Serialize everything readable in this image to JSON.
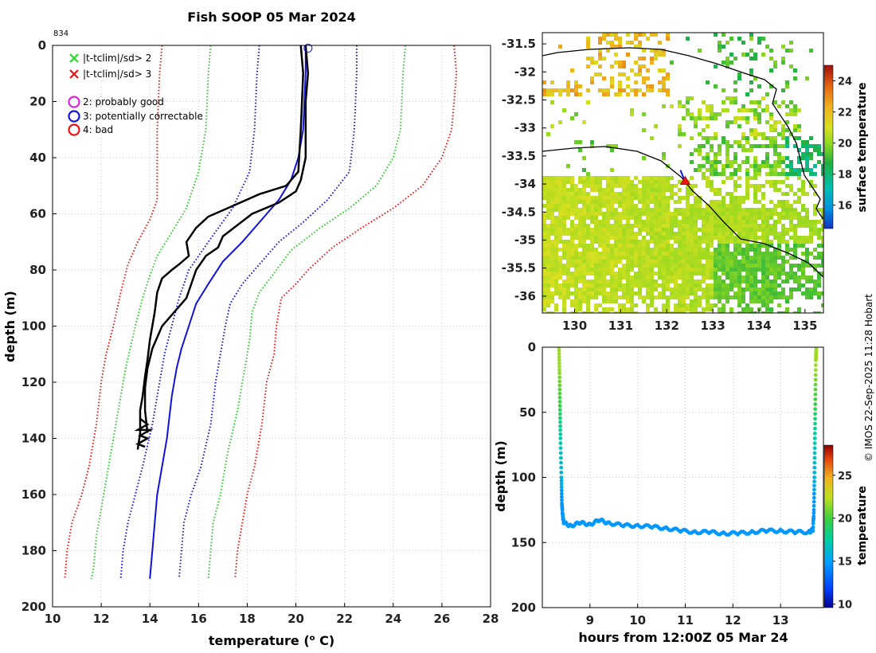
{
  "title": "Fish SOOP 05 Mar 2024",
  "profile_id": "834",
  "credit": "©  IMOS 22-Sep-2025 11:28 Hobart",
  "chart_data": [
    {
      "type": "line",
      "name": "temperature-profile",
      "xlabel": "temperature (°C)",
      "xlabel_main": "temperature (",
      "xlabel_sup": "o",
      "xlabel_tail": " C)",
      "ylabel": "depth (m)",
      "xlim": [
        10,
        28
      ],
      "ylim": [
        200,
        0
      ],
      "xticks": [
        10,
        12,
        14,
        16,
        18,
        20,
        22,
        24,
        26,
        28
      ],
      "yticks": [
        0,
        20,
        40,
        60,
        80,
        100,
        120,
        140,
        160,
        180,
        200
      ],
      "grid": true,
      "legend": [
        {
          "marker": "x",
          "color": "#22dd22",
          "label": "|t-tclim|/sd> 2"
        },
        {
          "marker": "x",
          "color": "#ee1111",
          "label": "|t-tclim|/sd> 3"
        },
        {
          "marker": "o",
          "color": "#dd22dd",
          "label": "2: probably good"
        },
        {
          "marker": "o",
          "color": "#1111dd",
          "label": "3: potentially correctable"
        },
        {
          "marker": "o",
          "color": "#ee1111",
          "label": "4: bad"
        }
      ],
      "series": [
        {
          "name": "clim minus 3sd",
          "color": "#ee1111",
          "style": "dotted",
          "points": [
            [
              14.5,
              0
            ],
            [
              14.4,
              10
            ],
            [
              14.3,
              30
            ],
            [
              14.3,
              55
            ],
            [
              14.0,
              62
            ],
            [
              13.5,
              70
            ],
            [
              13.1,
              78
            ],
            [
              12.8,
              88
            ],
            [
              12.5,
              100
            ],
            [
              12.2,
              110
            ],
            [
              12.0,
              120
            ],
            [
              11.8,
              135
            ],
            [
              11.5,
              150
            ],
            [
              11.2,
              160
            ],
            [
              10.8,
              170
            ],
            [
              10.6,
              180
            ],
            [
              10.5,
              190
            ]
          ]
        },
        {
          "name": "clim minus 2sd",
          "color": "#22cc22",
          "style": "dotted",
          "points": [
            [
              16.5,
              0
            ],
            [
              16.4,
              10
            ],
            [
              16.3,
              30
            ],
            [
              16.0,
              45
            ],
            [
              15.5,
              58
            ],
            [
              14.8,
              68
            ],
            [
              14.3,
              75
            ],
            [
              14.0,
              82
            ],
            [
              13.7,
              90
            ],
            [
              13.4,
              100
            ],
            [
              13.0,
              115
            ],
            [
              12.7,
              130
            ],
            [
              12.4,
              145
            ],
            [
              12.1,
              160
            ],
            [
              11.8,
              175
            ],
            [
              11.7,
              185
            ],
            [
              11.6,
              190
            ]
          ]
        },
        {
          "name": "clim minus 1sd",
          "color": "#1111dd",
          "style": "dotted",
          "points": [
            [
              18.5,
              0
            ],
            [
              18.4,
              10
            ],
            [
              18.3,
              30
            ],
            [
              18.1,
              45
            ],
            [
              17.4,
              58
            ],
            [
              16.4,
              70
            ],
            [
              15.6,
              80
            ],
            [
              15.2,
              90
            ],
            [
              14.9,
              100
            ],
            [
              14.6,
              110
            ],
            [
              14.4,
              120
            ],
            [
              14.1,
              135
            ],
            [
              13.7,
              150
            ],
            [
              13.4,
              160
            ],
            [
              13.1,
              170
            ],
            [
              12.9,
              180
            ],
            [
              12.8,
              190
            ]
          ]
        },
        {
          "name": "climatology mean",
          "color": "#1111dd",
          "style": "solid",
          "points": [
            [
              20.4,
              0
            ],
            [
              20.4,
              10
            ],
            [
              20.3,
              30
            ],
            [
              20.1,
              40
            ],
            [
              19.8,
              48
            ],
            [
              19.3,
              55
            ],
            [
              18.6,
              62
            ],
            [
              17.8,
              70
            ],
            [
              17.0,
              77
            ],
            [
              16.4,
              85
            ],
            [
              15.9,
              92
            ],
            [
              15.6,
              100
            ],
            [
              15.3,
              108
            ],
            [
              15.1,
              115
            ],
            [
              14.9,
              125
            ],
            [
              14.7,
              140
            ],
            [
              14.5,
              150
            ],
            [
              14.3,
              160
            ],
            [
              14.2,
              170
            ],
            [
              14.1,
              180
            ],
            [
              14.0,
              190
            ]
          ]
        },
        {
          "name": "clim plus 1sd",
          "color": "#1111dd",
          "style": "dotted",
          "points": [
            [
              22.5,
              0
            ],
            [
              22.5,
              10
            ],
            [
              22.4,
              30
            ],
            [
              22.2,
              45
            ],
            [
              21.3,
              55
            ],
            [
              20.3,
              63
            ],
            [
              19.3,
              70
            ],
            [
              18.5,
              78
            ],
            [
              17.8,
              85
            ],
            [
              17.3,
              92
            ],
            [
              17.1,
              100
            ],
            [
              16.9,
              110
            ],
            [
              16.7,
              120
            ],
            [
              16.5,
              135
            ],
            [
              16.1,
              150
            ],
            [
              15.7,
              160
            ],
            [
              15.4,
              170
            ],
            [
              15.3,
              180
            ],
            [
              15.2,
              190
            ]
          ]
        },
        {
          "name": "clim plus 2sd",
          "color": "#22cc22",
          "style": "dotted",
          "points": [
            [
              24.5,
              0
            ],
            [
              24.4,
              10
            ],
            [
              24.3,
              30
            ],
            [
              24.0,
              40
            ],
            [
              23.3,
              50
            ],
            [
              22.2,
              58
            ],
            [
              21.0,
              65
            ],
            [
              19.8,
              73
            ],
            [
              19.2,
              80
            ],
            [
              18.5,
              88
            ],
            [
              18.2,
              95
            ],
            [
              18.1,
              105
            ],
            [
              17.9,
              115
            ],
            [
              17.6,
              130
            ],
            [
              17.2,
              145
            ],
            [
              16.9,
              160
            ],
            [
              16.6,
              170
            ],
            [
              16.5,
              180
            ],
            [
              16.4,
              190
            ]
          ]
        },
        {
          "name": "clim plus 3sd",
          "color": "#ee1111",
          "style": "dotted",
          "points": [
            [
              26.5,
              0
            ],
            [
              26.6,
              10
            ],
            [
              26.4,
              30
            ],
            [
              26.0,
              40
            ],
            [
              25.2,
              50
            ],
            [
              24.0,
              58
            ],
            [
              22.7,
              65
            ],
            [
              21.5,
              72
            ],
            [
              20.5,
              80
            ],
            [
              20.0,
              85
            ],
            [
              19.4,
              90
            ],
            [
              19.2,
              100
            ],
            [
              19.1,
              110
            ],
            [
              18.8,
              120
            ],
            [
              18.6,
              135
            ],
            [
              18.3,
              150
            ],
            [
              18.0,
              160
            ],
            [
              17.8,
              170
            ],
            [
              17.6,
              180
            ],
            [
              17.5,
              190
            ]
          ]
        },
        {
          "name": "profile down",
          "color": "#000000",
          "style": "solid",
          "width": 2.5,
          "points": [
            [
              20.2,
              0
            ],
            [
              20.3,
              10
            ],
            [
              20.2,
              30
            ],
            [
              20.1,
              45
            ],
            [
              19.6,
              50
            ],
            [
              18.5,
              53
            ],
            [
              17.2,
              58
            ],
            [
              16.4,
              61
            ],
            [
              15.9,
              65
            ],
            [
              15.5,
              70
            ],
            [
              15.6,
              75
            ],
            [
              15.2,
              78
            ],
            [
              14.9,
              80
            ],
            [
              14.5,
              83
            ],
            [
              14.3,
              88
            ],
            [
              14.2,
              95
            ],
            [
              14.0,
              105
            ],
            [
              13.9,
              112
            ],
            [
              13.8,
              118
            ],
            [
              13.7,
              125
            ],
            [
              13.6,
              130
            ],
            [
              13.6,
              138
            ],
            [
              13.5,
              144
            ]
          ]
        },
        {
          "name": "profile up",
          "color": "#000000",
          "style": "solid",
          "width": 2.5,
          "points": [
            [
              13.9,
              138
            ],
            [
              13.8,
              130
            ],
            [
              13.8,
              122
            ],
            [
              13.9,
              115
            ],
            [
              14.1,
              108
            ],
            [
              14.5,
              100
            ],
            [
              15.0,
              95
            ],
            [
              15.5,
              90
            ],
            [
              15.7,
              85
            ],
            [
              15.9,
              80
            ],
            [
              16.3,
              75
            ],
            [
              16.8,
              72
            ],
            [
              17.0,
              68
            ],
            [
              17.6,
              64
            ],
            [
              18.2,
              60
            ],
            [
              19.3,
              56
            ],
            [
              20.0,
              52
            ],
            [
              20.2,
              48
            ],
            [
              20.4,
              40
            ],
            [
              20.4,
              30
            ],
            [
              20.4,
              20
            ],
            [
              20.5,
              10
            ],
            [
              20.4,
              0
            ]
          ]
        }
      ],
      "bad_marker": {
        "color": "#1111dd",
        "x": 20.5,
        "y": 1
      }
    },
    {
      "type": "heatmap",
      "name": "sst-map",
      "colorbar_label": "surface temperature",
      "xlim": [
        129.3,
        135.4
      ],
      "ylim": [
        -36.3,
        -31.3
      ],
      "xticks": [
        130,
        131,
        132,
        133,
        134,
        135
      ],
      "yticks": [
        -31.5,
        -32,
        -32.5,
        -33,
        -33.5,
        -34,
        -34.5,
        -35,
        -35.5,
        -36
      ],
      "ytick_labels": [
        "-31.5",
        "-32",
        "-32.5",
        "-33",
        "-33.5",
        "-34",
        "-34.5",
        "-35",
        "-35.5",
        "-36"
      ],
      "colorbar_range": [
        14.5,
        25
      ],
      "colorbar_ticks": [
        16,
        18,
        20,
        22,
        24
      ],
      "track_location": {
        "lon": 132.4,
        "lat": -33.95
      }
    },
    {
      "type": "scatter",
      "name": "depth-time",
      "xlabel": "hours from 12:00Z 05 Mar 24",
      "ylabel": "depth (m)",
      "colorbar_label": "temperature",
      "xlim": [
        8.0,
        13.9
      ],
      "ylim": [
        200,
        0
      ],
      "xticks": [
        9,
        10,
        11,
        12,
        13
      ],
      "yticks": [
        0,
        50,
        100,
        150,
        200
      ],
      "colorbar_range": [
        9.6,
        28.5
      ],
      "colorbar_ticks": [
        10,
        15,
        20,
        25
      ],
      "track": [
        [
          8.35,
          0
        ],
        [
          8.36,
          20
        ],
        [
          8.37,
          45
        ],
        [
          8.38,
          70
        ],
        [
          8.4,
          100
        ],
        [
          8.41,
          120
        ],
        [
          8.43,
          130
        ],
        [
          8.45,
          135
        ],
        [
          8.6,
          137
        ],
        [
          8.8,
          135
        ],
        [
          9.0,
          136
        ],
        [
          9.2,
          133
        ],
        [
          9.4,
          135
        ],
        [
          9.7,
          137
        ],
        [
          10.0,
          137
        ],
        [
          10.3,
          138
        ],
        [
          10.6,
          139
        ],
        [
          10.9,
          141
        ],
        [
          11.2,
          142
        ],
        [
          11.5,
          142
        ],
        [
          11.8,
          143
        ],
        [
          12.1,
          143
        ],
        [
          12.4,
          142
        ],
        [
          12.7,
          141
        ],
        [
          13.0,
          141
        ],
        [
          13.3,
          142
        ],
        [
          13.6,
          142
        ],
        [
          13.68,
          140
        ],
        [
          13.7,
          125
        ],
        [
          13.71,
          100
        ],
        [
          13.72,
          70
        ],
        [
          13.73,
          40
        ],
        [
          13.74,
          10
        ],
        [
          13.75,
          0
        ]
      ]
    }
  ]
}
